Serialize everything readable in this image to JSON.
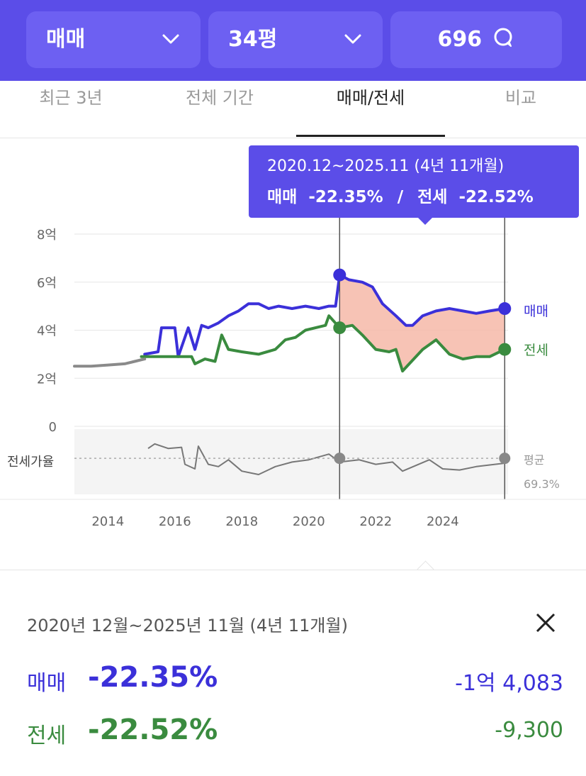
{
  "header": {
    "type_select": "매매",
    "size_select": "34평",
    "count": "696"
  },
  "tabs": [
    {
      "label": "최근 3년",
      "active": false
    },
    {
      "label": "전체 기간",
      "active": false
    },
    {
      "label": "매매/전세",
      "active": true
    },
    {
      "label": "비교",
      "active": false
    }
  ],
  "tooltip": {
    "range": "2020.12~2025.11 (4년 11개월)",
    "sale_label": "매매",
    "sale_pct": "-22.35%",
    "divider": "/",
    "jeonse_label": "전세",
    "jeonse_pct": "-22.52%"
  },
  "colors": {
    "brand": "#5b4de8",
    "sale": "#3b30d9",
    "jeonse": "#3a8b3f",
    "ratio": "#777777",
    "fill": "#f6b8a8"
  },
  "chart_data": {
    "type": "line",
    "x_unit": "year",
    "x_ticks": [
      "2014",
      "2016",
      "2018",
      "2020",
      "2022",
      "2024"
    ],
    "x_range": [
      2013.0,
      2025.95
    ],
    "y_ticks": [
      "0",
      "2억",
      "4억",
      "6억",
      "8억"
    ],
    "y_range": [
      0,
      8
    ],
    "grid": true,
    "highlight_range": [
      2020.92,
      2025.85
    ],
    "series": [
      {
        "name": "매매",
        "color": "#3b30d9",
        "points": [
          [
            2015.1,
            3.0
          ],
          [
            2015.5,
            3.1
          ],
          [
            2015.6,
            4.1
          ],
          [
            2016.0,
            4.1
          ],
          [
            2016.1,
            2.9
          ],
          [
            2016.4,
            4.1
          ],
          [
            2016.6,
            3.2
          ],
          [
            2016.8,
            4.2
          ],
          [
            2017.0,
            4.1
          ],
          [
            2017.3,
            4.3
          ],
          [
            2017.6,
            4.6
          ],
          [
            2017.9,
            4.8
          ],
          [
            2018.2,
            5.1
          ],
          [
            2018.5,
            5.1
          ],
          [
            2018.8,
            4.9
          ],
          [
            2019.1,
            5.0
          ],
          [
            2019.5,
            4.9
          ],
          [
            2019.9,
            5.0
          ],
          [
            2020.3,
            4.9
          ],
          [
            2020.6,
            5.0
          ],
          [
            2020.8,
            5.0
          ],
          [
            2020.92,
            6.3
          ],
          [
            2021.2,
            6.1
          ],
          [
            2021.6,
            6.0
          ],
          [
            2021.9,
            5.8
          ],
          [
            2022.2,
            5.1
          ],
          [
            2022.6,
            4.6
          ],
          [
            2022.9,
            4.2
          ],
          [
            2023.1,
            4.2
          ],
          [
            2023.4,
            4.6
          ],
          [
            2023.8,
            4.8
          ],
          [
            2024.2,
            4.9
          ],
          [
            2024.6,
            4.8
          ],
          [
            2025.0,
            4.7
          ],
          [
            2025.4,
            4.8
          ],
          [
            2025.85,
            4.9
          ]
        ]
      },
      {
        "name": "전세",
        "color": "#3a8b3f",
        "points": [
          [
            2015.0,
            2.9
          ],
          [
            2015.5,
            2.9
          ],
          [
            2016.0,
            2.9
          ],
          [
            2016.5,
            2.9
          ],
          [
            2016.6,
            2.6
          ],
          [
            2016.9,
            2.8
          ],
          [
            2017.2,
            2.7
          ],
          [
            2017.4,
            3.8
          ],
          [
            2017.6,
            3.2
          ],
          [
            2018.0,
            3.1
          ],
          [
            2018.5,
            3.0
          ],
          [
            2019.0,
            3.2
          ],
          [
            2019.3,
            3.6
          ],
          [
            2019.6,
            3.7
          ],
          [
            2019.9,
            4.0
          ],
          [
            2020.2,
            4.1
          ],
          [
            2020.5,
            4.2
          ],
          [
            2020.6,
            4.6
          ],
          [
            2020.92,
            4.1
          ],
          [
            2021.3,
            4.2
          ],
          [
            2021.6,
            3.8
          ],
          [
            2022.0,
            3.2
          ],
          [
            2022.4,
            3.1
          ],
          [
            2022.6,
            3.2
          ],
          [
            2022.8,
            2.3
          ],
          [
            2023.0,
            2.6
          ],
          [
            2023.4,
            3.2
          ],
          [
            2023.8,
            3.6
          ],
          [
            2024.2,
            3.0
          ],
          [
            2024.6,
            2.8
          ],
          [
            2025.0,
            2.9
          ],
          [
            2025.4,
            2.9
          ],
          [
            2025.85,
            3.2
          ]
        ]
      },
      {
        "name": "history",
        "color": "#8a8a8a",
        "points": [
          [
            2013.0,
            2.5
          ],
          [
            2013.5,
            2.5
          ],
          [
            2014.0,
            2.55
          ],
          [
            2014.5,
            2.6
          ],
          [
            2014.8,
            2.7
          ],
          [
            2015.1,
            2.8
          ]
        ]
      }
    ],
    "sale_end_dot": [
      2025.85,
      4.9
    ],
    "jeonse_end_dot": [
      2025.85,
      3.2
    ],
    "sale_start_dot": [
      2020.92,
      6.3
    ],
    "jeonse_start_dot": [
      2020.92,
      4.1
    ],
    "sale_label": "매매",
    "jeonse_label": "전세",
    "ratio": {
      "label": "전세가율",
      "average_label": "평균",
      "average_value": "69.3%",
      "average": 69.3,
      "points": [
        [
          2015.2,
          78
        ],
        [
          2015.4,
          82
        ],
        [
          2015.8,
          78
        ],
        [
          2016.2,
          79
        ],
        [
          2016.3,
          64
        ],
        [
          2016.6,
          60
        ],
        [
          2016.7,
          80
        ],
        [
          2017.0,
          64
        ],
        [
          2017.3,
          62
        ],
        [
          2017.6,
          68
        ],
        [
          2018.0,
          58
        ],
        [
          2018.5,
          55
        ],
        [
          2019.0,
          62
        ],
        [
          2019.5,
          66
        ],
        [
          2020.0,
          68
        ],
        [
          2020.6,
          73
        ],
        [
          2020.92,
          66
        ],
        [
          2021.5,
          68
        ],
        [
          2022.0,
          64
        ],
        [
          2022.5,
          66
        ],
        [
          2022.8,
          58
        ],
        [
          2023.2,
          63
        ],
        [
          2023.6,
          68
        ],
        [
          2024.0,
          60
        ],
        [
          2024.5,
          59
        ],
        [
          2025.0,
          62
        ],
        [
          2025.85,
          65
        ]
      ]
    }
  },
  "panel": {
    "range_text": "2020년 12월~2025년 11월 (4년 11개월)",
    "sale_label": "매매",
    "sale_pct": "-22.35%",
    "sale_amount": "-1억 4,083",
    "jeonse_label": "전세",
    "jeonse_pct": "-22.52%",
    "jeonse_amount": "-9,300"
  }
}
